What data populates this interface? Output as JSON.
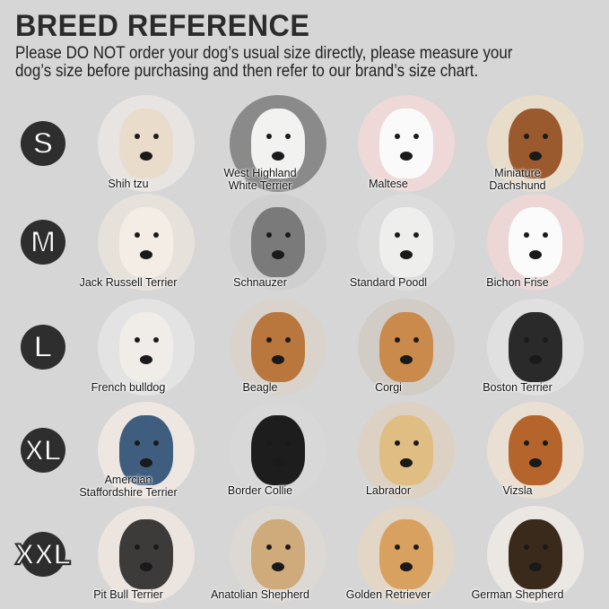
{
  "header": {
    "title": "BREED REFERENCE",
    "subtitle_line1": "Please DO NOT order your dog’s usual size directly, please measure your",
    "subtitle_line2": "dog’s size before purchasing and then refer to our brand’s size chart."
  },
  "rows": [
    {
      "size": "S",
      "breeds": [
        {
          "name": "Shih tzu",
          "bg": "#e8e4e2",
          "fur": "#e9dccb"
        },
        {
          "name": "West Highland\nWhite Terrier",
          "bg": "#8a8a8a",
          "fur": "#f2f2f0"
        },
        {
          "name": "Maltese",
          "bg": "#efd8d8",
          "fur": "#fafafa"
        },
        {
          "name": "Miniature\nDachshund",
          "bg": "#e8dccb",
          "fur": "#9b5a2e"
        }
      ]
    },
    {
      "size": "M",
      "breeds": [
        {
          "name": "Jack Russell Terrier",
          "bg": "#e7e1dc",
          "fur": "#f3ede6"
        },
        {
          "name": "Schnauzer",
          "bg": "#cfcfcf",
          "fur": "#7a7a7a"
        },
        {
          "name": "Standard Poodl",
          "bg": "#dcdcdc",
          "fur": "#eeeeec"
        },
        {
          "name": "Bichon Frise",
          "bg": "#ecd6d6",
          "fur": "#fbfbfb"
        }
      ]
    },
    {
      "size": "L",
      "breeds": [
        {
          "name": "French bulldog",
          "bg": "#e3e3e3",
          "fur": "#f0ece8"
        },
        {
          "name": "Beagle",
          "bg": "#d9d3cc",
          "fur": "#b9763d"
        },
        {
          "name": "Corgi",
          "bg": "#d2ccc6",
          "fur": "#c98a4c"
        },
        {
          "name": "Boston Terrier",
          "bg": "#e0e0e0",
          "fur": "#2a2a2a"
        }
      ]
    },
    {
      "size": "XL",
      "breeds": [
        {
          "name": "Amercian\nStaffordshire Terrier",
          "bg": "#ede6e1",
          "fur": "#3f5d7e"
        },
        {
          "name": "Border Collie",
          "bg": "#d8d8d8",
          "fur": "#1d1d1d"
        },
        {
          "name": "Labrador",
          "bg": "#dcd1c2",
          "fur": "#e0bd83"
        },
        {
          "name": "Vizsla",
          "bg": "#e9dfd3",
          "fur": "#b5652c"
        }
      ]
    },
    {
      "size": "XXL",
      "breeds": [
        {
          "name": "Pit Bull Terrier",
          "bg": "#ebe4df",
          "fur": "#3d3a3a"
        },
        {
          "name": "Anatolian Shepherd",
          "bg": "#dcd8d3",
          "fur": "#cfaa7a"
        },
        {
          "name": "Golden Retriever",
          "bg": "#e2d6c6",
          "fur": "#d9a160"
        },
        {
          "name": "German Shepherd",
          "bg": "#ebe7e3",
          "fur": "#3a2a1c"
        }
      ]
    }
  ]
}
